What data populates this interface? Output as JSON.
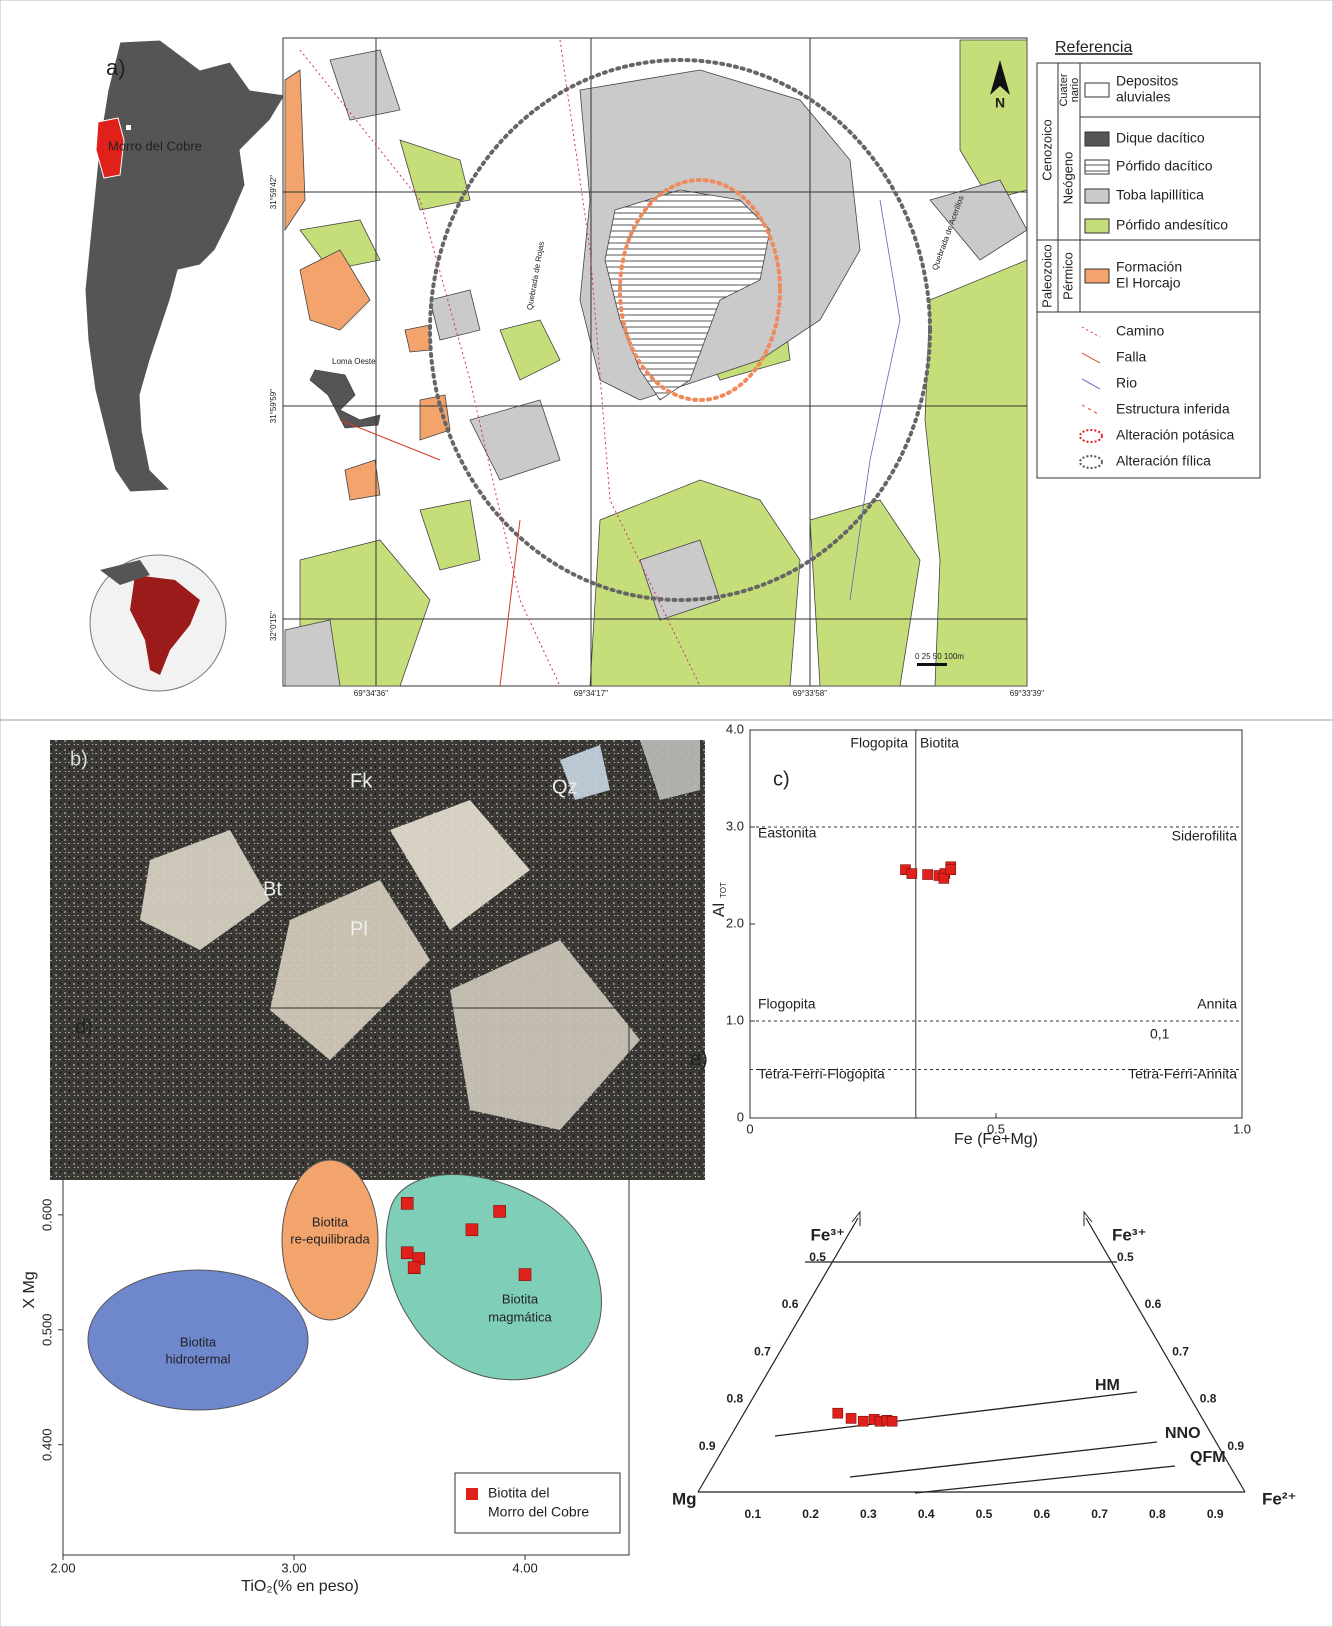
{
  "map": {
    "panel_label": "a)",
    "inset_label": "Morro del Cobre",
    "north": "N",
    "places": [
      "Loma Oeste",
      "Quebrada de Rojas",
      "Quebrada de Acerillos"
    ],
    "lon_labels": [
      "69°34'36''",
      "69°34'17''",
      "69°33'58''",
      "69°33'39''"
    ],
    "lat_labels": [
      "31°59'42''",
      "31°59'59''",
      "32°0'15''"
    ],
    "scale": "0 25 50 100m"
  },
  "legend": {
    "title": "Referencia",
    "eras": [
      "Cenozoico",
      "Paleozoico"
    ],
    "periods": [
      [
        "Cuater",
        "nario"
      ],
      [
        "Neógeno"
      ],
      [
        "Pérmico"
      ]
    ],
    "units": [
      [
        "Depositos",
        "aluviales"
      ],
      [
        "Dique dacítico"
      ],
      [
        "Pórfido dacítico"
      ],
      [
        "Toba lapillítica"
      ],
      [
        "Pórfido andesítico"
      ],
      [
        "Formación",
        "El Horcajo"
      ]
    ],
    "lines": [
      "Camino",
      "Falla",
      "Rio",
      "Estructura inferida",
      "Alteración potásica",
      "Alteración fílica"
    ]
  },
  "photo": {
    "panel_label": "b)",
    "minerals": [
      "Fk",
      "Qz",
      "Bt",
      "Pl"
    ]
  },
  "chart_data": [
    {
      "type": "scatter",
      "panel_label": "c)",
      "x_label": "Fe (Fe+Mg)",
      "y_label": "Al",
      "y_label_sub": "TOT",
      "annotations": [
        "Flogopita",
        "Biotita",
        "Eastonita",
        "Siderofilita",
        "Flogopita",
        "Annita",
        "0,1",
        "Tetra-Ferri-Flogopita",
        "Tetra-Ferri-Annita"
      ],
      "x": [
        0.316,
        0.329,
        0.361,
        0.384,
        0.396,
        0.408,
        0.394,
        0.408
      ],
      "values": [
        2.56,
        2.52,
        2.51,
        2.5,
        2.52,
        2.59,
        2.47,
        2.56
      ],
      "color": "#e0201b",
      "ref_x": [
        0.337
      ],
      "ref_y": [
        3.0,
        1.0,
        0.5
      ],
      "xlim": [
        0,
        1
      ],
      "ylim": [
        0,
        4
      ],
      "xticks": [
        0,
        0.5,
        {
          "value": 1,
          "label": "1.0"
        }
      ],
      "yticks": [
        0,
        {
          "value": 1,
          "label": "1.0"
        },
        {
          "value": 2,
          "label": "2.0"
        },
        {
          "value": 3,
          "label": "3.0"
        },
        {
          "value": 4,
          "label": "4.0"
        }
      ]
    },
    {
      "type": "scatter",
      "panel_label": "d)",
      "x_label": "TiO₂(% en peso)",
      "y_label": "X Mg",
      "regions": [
        [
          "Biotita",
          "hidrotermal"
        ],
        [
          "Biotita",
          "re-equilibrada"
        ],
        [
          "Biotita",
          "magmática"
        ]
      ],
      "series": [
        {
          "name": [
            "Biotita del",
            "Morro del Cobre"
          ],
          "color": "#e0201b",
          "x": [
            3.49,
            3.89,
            3.77,
            3.49,
            3.54,
            3.52,
            4.0
          ],
          "values": [
            0.61,
            0.603,
            0.587,
            0.567,
            0.562,
            0.554,
            0.548
          ]
        }
      ],
      "xlim": [
        2.0,
        4.45
      ],
      "ylim": [
        0.304,
        0.78
      ],
      "xticks": [
        {
          "value": 2,
          "label": "2.00"
        },
        {
          "value": 3,
          "label": "3.00"
        },
        {
          "value": 4,
          "label": "4.00"
        }
      ],
      "yticks": [
        {
          "value": 0.4,
          "label": "0.400"
        },
        {
          "value": 0.5,
          "label": "0.500"
        },
        {
          "value": 0.6,
          "label": "0.600"
        }
      ]
    },
    {
      "type": "ternary",
      "panel_label": "e)",
      "corners": [
        "Fe³⁺",
        "Fe³⁺",
        "Mg",
        "Fe²⁺"
      ],
      "buffers": [
        "HM",
        "NNO",
        "QFM"
      ],
      "left_ticks": [
        0.5,
        0.6,
        0.7,
        0.8,
        0.9
      ],
      "right_ticks": [
        0.5,
        0.6,
        0.7,
        0.8,
        0.9
      ],
      "bottom_ticks": [
        0.1,
        0.2,
        0.3,
        0.4,
        0.5,
        0.6,
        0.7,
        0.8,
        0.9
      ],
      "x": [
        0.247,
        0.27,
        0.291,
        0.31,
        0.32,
        0.332,
        0.341
      ],
      "values": [
        0.829,
        0.84,
        0.846,
        0.842,
        0.846,
        0.844,
        0.846
      ],
      "color": "#e0201b"
    }
  ]
}
